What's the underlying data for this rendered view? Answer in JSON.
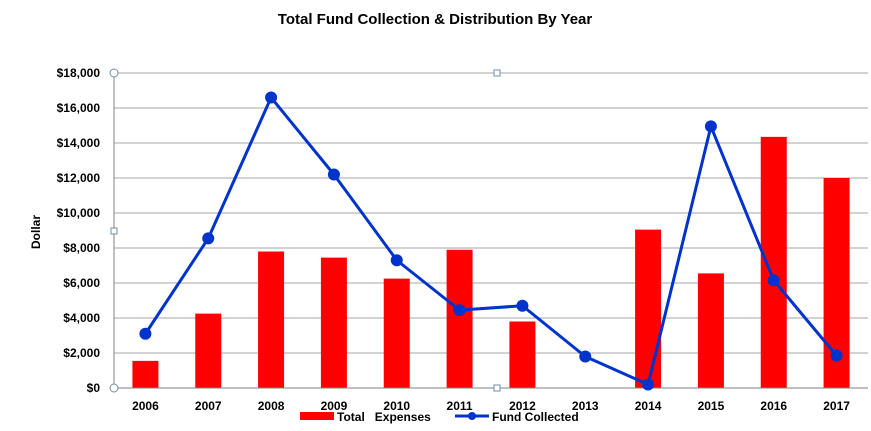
{
  "chart_data": {
    "type": "bar+line",
    "title": "Total Fund Collection & Distribution By Year",
    "ylabel": "Dollar",
    "xlabel": "",
    "categories": [
      "2006",
      "2007",
      "2008",
      "2009",
      "2010",
      "2011",
      "2012",
      "2013",
      "2014",
      "2015",
      "2016",
      "2017"
    ],
    "ylim": [
      0,
      18000
    ],
    "yticks": [
      0,
      2000,
      4000,
      6000,
      8000,
      10000,
      12000,
      14000,
      16000,
      18000
    ],
    "ytick_labels": [
      "$0",
      "$2,000",
      "$4,000",
      "$6,000",
      "$8,000",
      "$10,000",
      "$12,000",
      "$14,000",
      "$16,000",
      "$18,000"
    ],
    "grid": "horizontal",
    "legend_position": "bottom",
    "series": [
      {
        "name": "Total   Expenses",
        "kind": "bar",
        "color": "#ff0000",
        "values": [
          1550,
          4250,
          7800,
          7450,
          6250,
          7900,
          3800,
          0,
          9050,
          6550,
          14350,
          12000
        ]
      },
      {
        "name": "Fund Collected",
        "kind": "line",
        "color": "#0033cc",
        "values": [
          3100,
          8550,
          16600,
          12200,
          7300,
          4450,
          4700,
          1800,
          200,
          14950,
          6150,
          1850
        ]
      }
    ]
  }
}
